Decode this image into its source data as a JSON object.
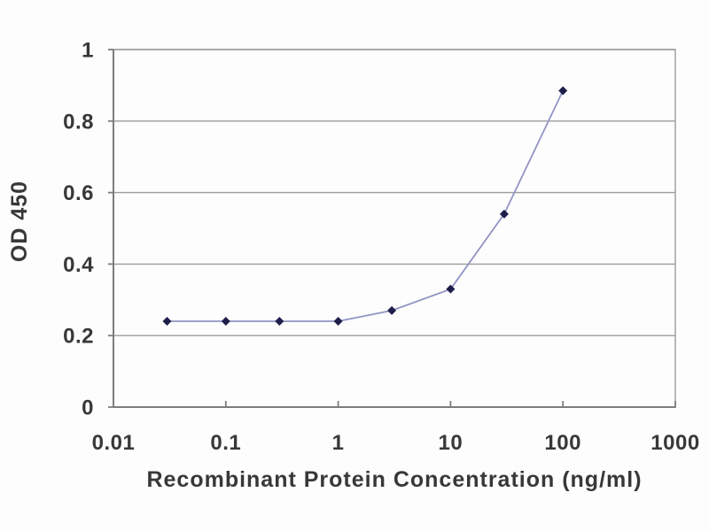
{
  "page": {
    "background": "#fdfdfd"
  },
  "chart_data": {
    "type": "line",
    "title": "",
    "xlabel": "Recombinant Protein Concentration (ng/ml)",
    "ylabel": "OD 450",
    "x_scale": "log10",
    "xlim": [
      0.01,
      1000
    ],
    "ylim": [
      0,
      1
    ],
    "x_ticks": [
      0.01,
      0.1,
      1,
      10,
      100,
      1000
    ],
    "x_tick_labels": [
      "0.01",
      "0.1",
      "1",
      "10",
      "100",
      "1000"
    ],
    "y_ticks": [
      0,
      0.2,
      0.4,
      0.6,
      0.8,
      1
    ],
    "y_tick_labels": [
      "0",
      "0.2",
      "0.4",
      "0.6",
      "0.8",
      "1"
    ],
    "grid": "horizontal-only",
    "legend": "none",
    "series": [
      {
        "name": "OD450",
        "marker": "diamond",
        "x": [
          0.03,
          0.1,
          0.3,
          1,
          3,
          10,
          30,
          100
        ],
        "y": [
          0.24,
          0.24,
          0.24,
          0.24,
          0.27,
          0.33,
          0.54,
          0.885
        ]
      }
    ],
    "colors": {
      "line": "#9295c4",
      "marker": "#1e1e4b",
      "axis": "#7d7d7d",
      "grid": "#9c9c9c",
      "text": "#383838",
      "background": "#fdfdfd"
    }
  }
}
